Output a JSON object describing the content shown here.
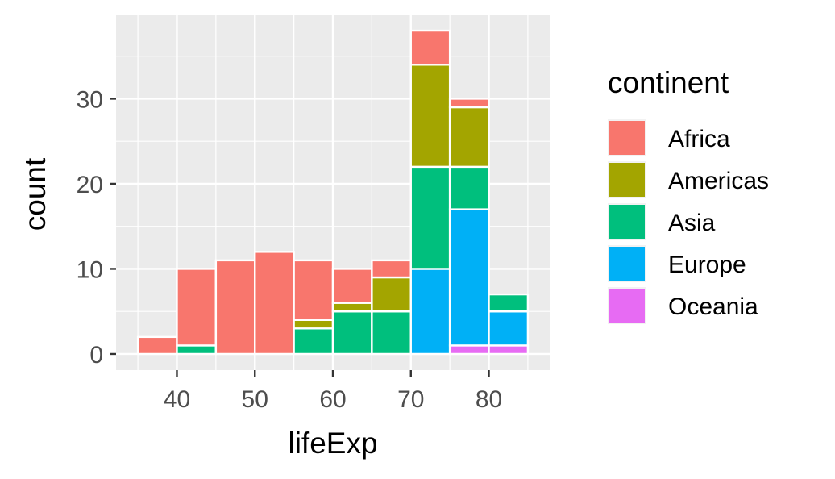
{
  "chart_data": {
    "type": "bar",
    "subtype": "stacked-histogram",
    "xlabel": "lifeExp",
    "ylabel": "count",
    "xlim": [
      32.2,
      87.8
    ],
    "ylim": [
      -1.9,
      39.9
    ],
    "x_ticks": [
      40,
      50,
      60,
      70,
      80
    ],
    "y_ticks": [
      0,
      10,
      20,
      30
    ],
    "bin_width": 5,
    "bins": [
      {
        "start": 35,
        "end": 40
      },
      {
        "start": 40,
        "end": 45
      },
      {
        "start": 45,
        "end": 50
      },
      {
        "start": 50,
        "end": 55
      },
      {
        "start": 55,
        "end": 60
      },
      {
        "start": 60,
        "end": 65
      },
      {
        "start": 65,
        "end": 70
      },
      {
        "start": 70,
        "end": 75
      },
      {
        "start": 75,
        "end": 80
      },
      {
        "start": 80,
        "end": 85
      }
    ],
    "stack_order": [
      "Oceania",
      "Europe",
      "Asia",
      "Americas",
      "Africa"
    ],
    "series": [
      {
        "name": "Africa",
        "color": "#F8766D",
        "values": [
          2,
          9,
          11,
          12,
          7,
          4,
          2,
          4,
          1,
          0
        ]
      },
      {
        "name": "Americas",
        "color": "#A3A500",
        "values": [
          0,
          0,
          0,
          0,
          1,
          1,
          4,
          12,
          7,
          0
        ]
      },
      {
        "name": "Asia",
        "color": "#00BF7D",
        "values": [
          0,
          1,
          0,
          0,
          3,
          5,
          5,
          12,
          5,
          2
        ]
      },
      {
        "name": "Europe",
        "color": "#00B0F6",
        "values": [
          0,
          0,
          0,
          0,
          0,
          0,
          0,
          10,
          16,
          4
        ]
      },
      {
        "name": "Oceania",
        "color": "#E76BF3",
        "values": [
          0,
          0,
          0,
          0,
          0,
          0,
          0,
          0,
          1,
          1
        ]
      }
    ],
    "legend": {
      "title": "continent",
      "placement": "right"
    },
    "grid": true,
    "panel_background": "#EBEBEB",
    "grid_color": "#FFFFFF",
    "bar_outline": "#FFFFFF"
  }
}
